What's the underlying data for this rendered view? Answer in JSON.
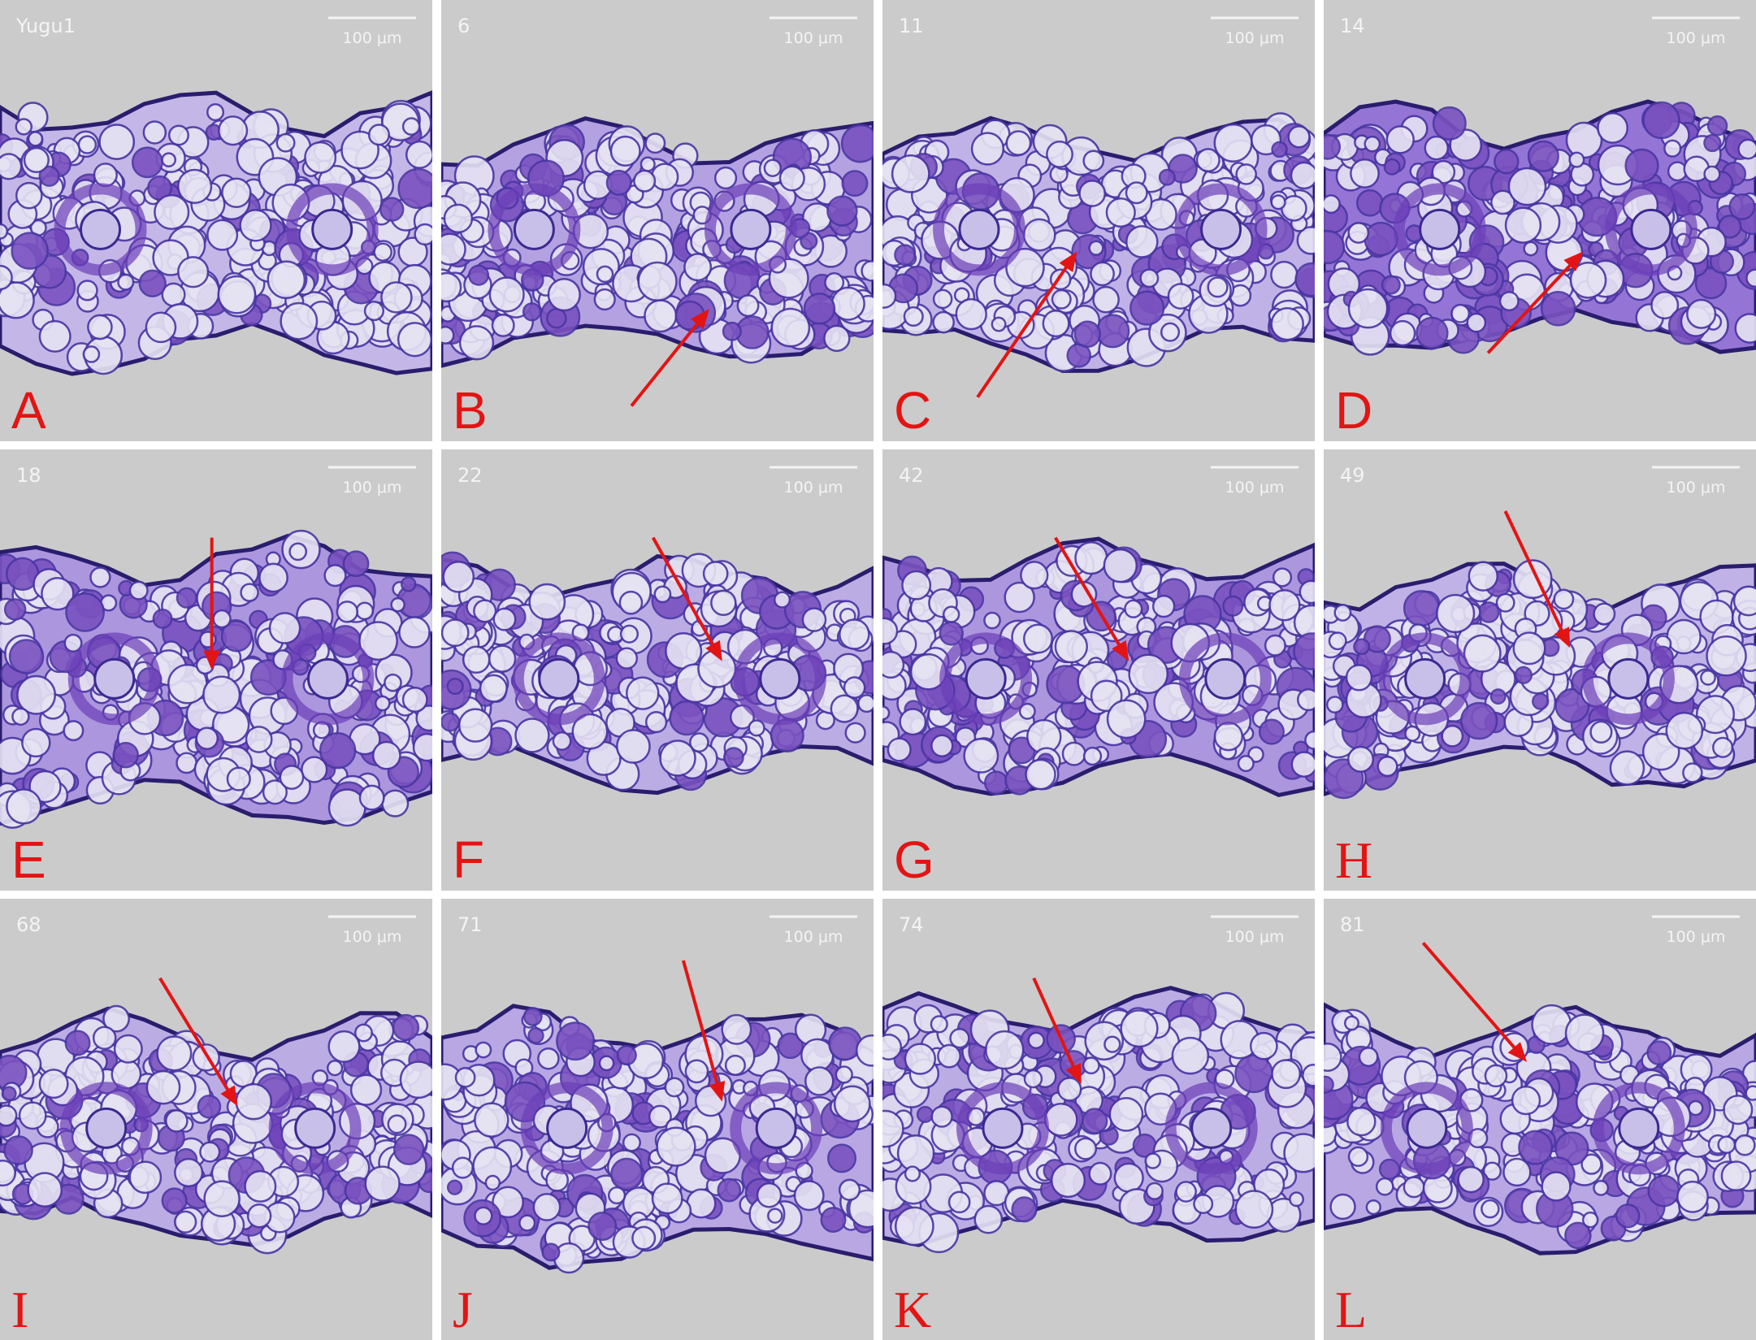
{
  "panels": [
    {
      "sample": "Yugu1",
      "scale": "100 μm",
      "letter": "A"
    },
    {
      "sample": "6",
      "scale": "100 μm",
      "letter": "B"
    },
    {
      "sample": "11",
      "scale": "100 μm",
      "letter": "C"
    },
    {
      "sample": "14",
      "scale": "100 μm",
      "letter": "D"
    },
    {
      "sample": "18",
      "scale": "100 μm",
      "letter": "E"
    },
    {
      "sample": "22",
      "scale": "100 μm",
      "letter": "F"
    },
    {
      "sample": "42",
      "scale": "100 μm",
      "letter": "G"
    },
    {
      "sample": "49",
      "scale": "100 μm",
      "letter": "H"
    },
    {
      "sample": "68",
      "scale": "100 μm",
      "letter": "I"
    },
    {
      "sample": "71",
      "scale": "100 μm",
      "letter": "J"
    },
    {
      "sample": "74",
      "scale": "100 μm",
      "letter": "K"
    },
    {
      "sample": "81",
      "scale": "100 μm",
      "letter": "L"
    }
  ]
}
